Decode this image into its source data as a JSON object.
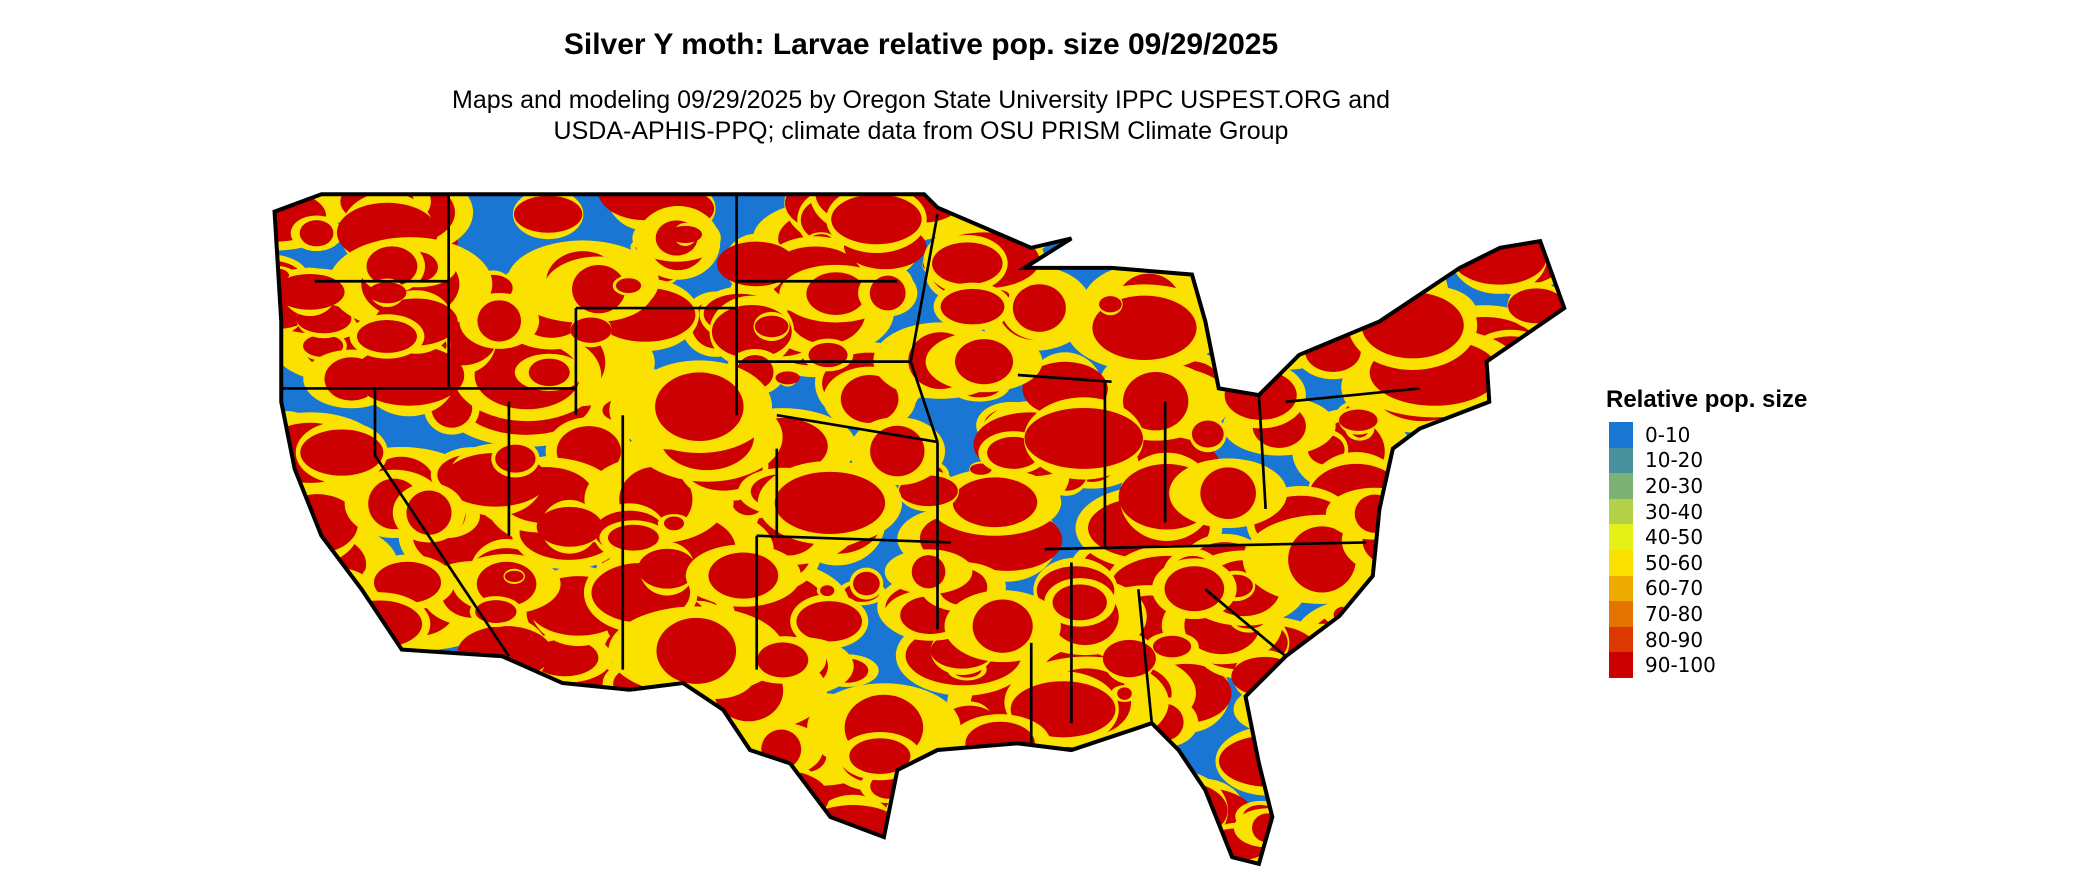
{
  "title": "Silver Y moth: Larvae relative pop. size 09/29/2025",
  "subtitle_lines": [
    "Maps and modeling 09/29/2025 by Oregon State University IPPC USPEST.ORG and",
    "USDA-APHIS-PPQ; climate data from OSU PRISM Climate Group"
  ],
  "map": {
    "region": "Contiguous United States",
    "background_color": "#1976D2",
    "border_color": "#000000"
  },
  "legend": {
    "title": "Relative pop. size",
    "items": [
      {
        "label": "0-10",
        "color": "#1976D2"
      },
      {
        "label": "10-20",
        "color": "#4A919E"
      },
      {
        "label": "20-30",
        "color": "#7DB176"
      },
      {
        "label": "30-40",
        "color": "#B2D146"
      },
      {
        "label": "40-50",
        "color": "#E5F016"
      },
      {
        "label": "50-60",
        "color": "#FAE100"
      },
      {
        "label": "60-70",
        "color": "#F0AB00"
      },
      {
        "label": "70-80",
        "color": "#E47300"
      },
      {
        "label": "80-90",
        "color": "#DC3900"
      },
      {
        "label": "90-100",
        "color": "#CC0000"
      }
    ]
  }
}
